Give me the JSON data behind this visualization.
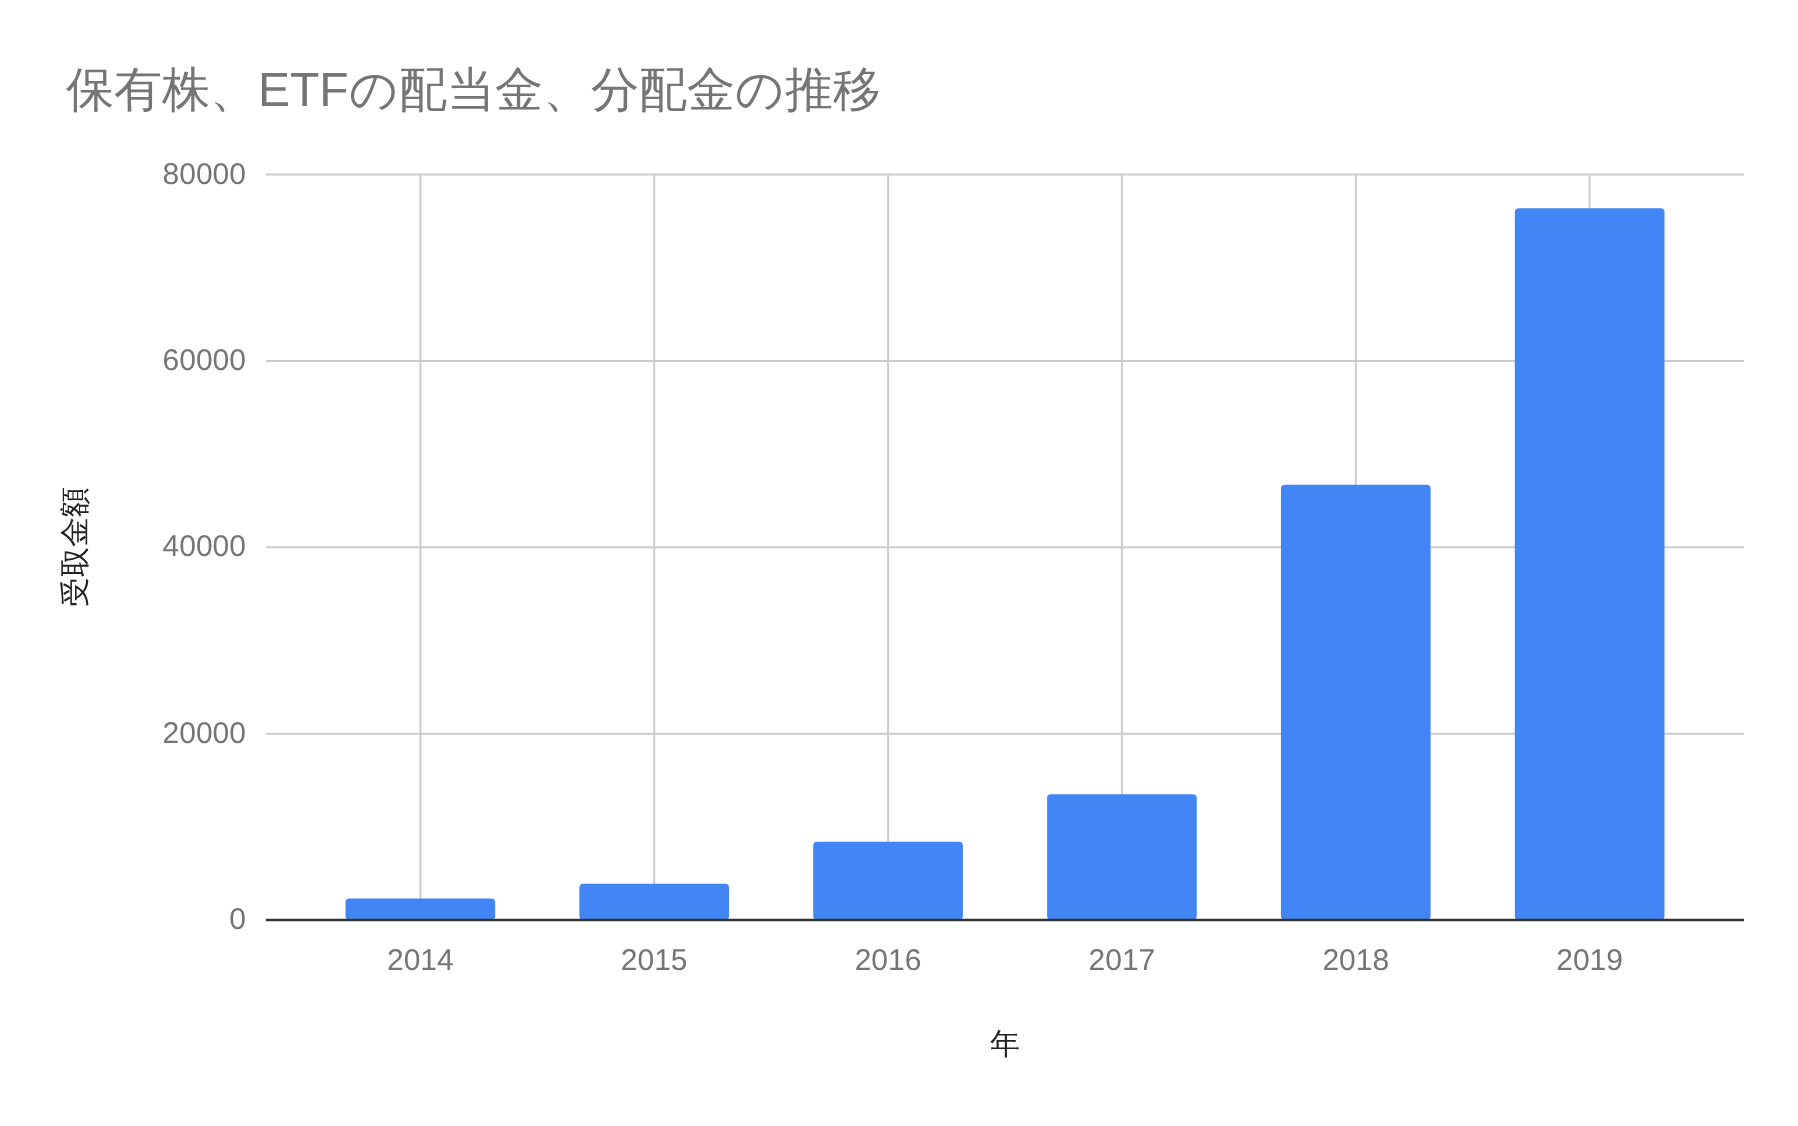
{
  "chart_data": {
    "type": "bar",
    "title": "保有株、ETFの配当金、分配金の推移",
    "xlabel": "年",
    "ylabel": "受取金額",
    "categories": [
      "2014",
      "2015",
      "2016",
      "2017",
      "2018",
      "2019"
    ],
    "values": [
      2300,
      3900,
      8400,
      13500,
      46700,
      76400
    ],
    "color": "#4285f4",
    "ylim": [
      0,
      80000
    ],
    "yticks": [
      0,
      20000,
      40000,
      60000,
      80000
    ],
    "grid": true
  }
}
